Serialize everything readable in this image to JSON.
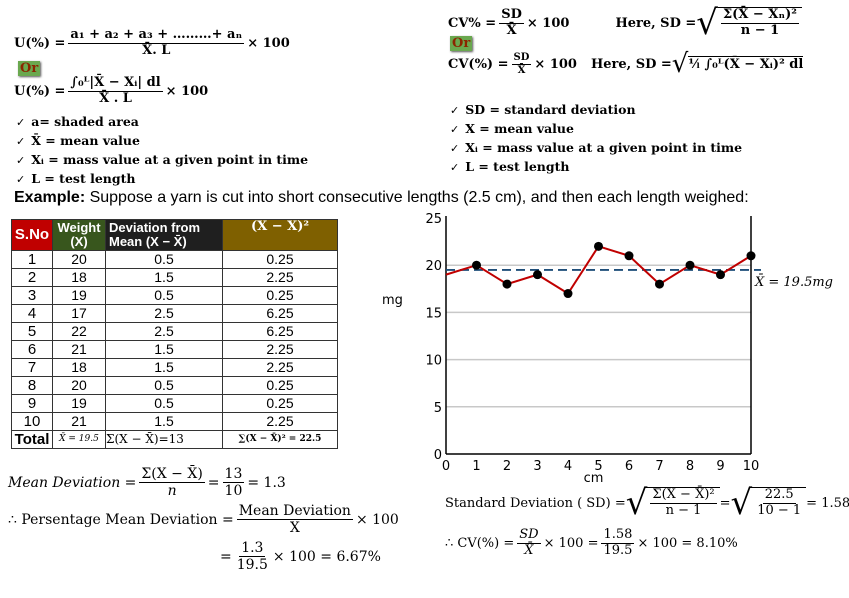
{
  "uniformity": {
    "formula1": {
      "lhs": "U(%) =",
      "num": "a₁ + a₂ + a₃ +   ………+ aₙ",
      "den": "X̄. L",
      "times": "× 100"
    },
    "or_label": "Or",
    "formula2": {
      "lhs": "U(%) =",
      "num": "∫₀ᴸ|X̄ − Xᵢ| dl",
      "den": "X̄ . L",
      "times": "× 100"
    },
    "bullets": [
      "a= shaded area",
      "X̄ = mean value",
      "Xᵢ = mass value at a given point in time",
      "L = test length"
    ]
  },
  "cv": {
    "formula1": {
      "lhs": "CV% =",
      "num": "SD",
      "den": "X̄",
      "times": "× 100",
      "here": "Here, SD =",
      "sd_num": "Σ(X̄ − Xₙ)²",
      "sd_den": "n − 1"
    },
    "or_label": "Or",
    "formula2": {
      "lhs": "CV(%) =",
      "num": "SD",
      "den": "X̄",
      "times": "× 100",
      "here": "Here, SD =",
      "sd_body": "¹⁄ₗ ∫₀ᴸ(X̄ − Xᵢ)² dl"
    },
    "bullets": [
      "SD = standard deviation",
      "X = mean value",
      "Xᵢ = mass value at a given point in time",
      "L = test length"
    ]
  },
  "example": {
    "label": "Example:",
    "text": " Suppose a yarn is cut into short consecutive lengths (2.5 cm), and then each length weighed:"
  },
  "table": {
    "headers": [
      "S.No",
      "Weight (X)",
      "Deviation from Mean (X − X̄)",
      "(X − X̄)²"
    ],
    "header_colors": [
      "#c00000",
      "#38561d",
      "#1f1f1f",
      "#7f6000"
    ],
    "rows": [
      [
        "1",
        "20",
        "0.5",
        "0.25"
      ],
      [
        "2",
        "18",
        "1.5",
        "2.25"
      ],
      [
        "3",
        "19",
        "0.5",
        "0.25"
      ],
      [
        "4",
        "17",
        "2.5",
        "6.25"
      ],
      [
        "5",
        "22",
        "2.5",
        "6.25"
      ],
      [
        "6",
        "21",
        "1.5",
        "2.25"
      ],
      [
        "7",
        "18",
        "1.5",
        "2.25"
      ],
      [
        "8",
        "20",
        "0.5",
        "0.25"
      ],
      [
        "9",
        "19",
        "0.5",
        "0.25"
      ],
      [
        "10",
        "21",
        "1.5",
        "2.25"
      ]
    ],
    "total": [
      "Total",
      "X̄ = 19.5",
      "Σ(X − X̄)=13",
      "∑(X − X̄)² = 22.5"
    ]
  },
  "chart_data": {
    "type": "line",
    "x": [
      0,
      1,
      2,
      3,
      4,
      5,
      6,
      7,
      8,
      9,
      10
    ],
    "values": [
      19,
      20,
      18,
      19,
      17,
      22,
      21,
      18,
      20,
      19,
      21
    ],
    "markers_from_index": 1,
    "xlabel": "cm",
    "ylabel": "mg",
    "xlim": [
      0,
      10
    ],
    "ylim": [
      0,
      25
    ],
    "xticks": [
      "0",
      "1",
      "2",
      "3",
      "4",
      "5",
      "6",
      "7",
      "8",
      "9",
      "10"
    ],
    "yticks": [
      "0",
      "5",
      "10",
      "15",
      "20",
      "25"
    ],
    "grid": "horizontal",
    "mean": 19.5,
    "mean_label": "X̄ = 19.5mg",
    "line_color": "#c00000",
    "mean_color": "#1f4e79"
  },
  "mean_deviation": {
    "lhs": "Mean Deviation =",
    "num": "Σ(X − X̄)",
    "den": "n",
    "eq1": "=",
    "num2": "13",
    "den2": "10",
    "result": "= 1.3",
    "pct_lhs": "∴ Persentage Mean Deviation =",
    "pct_num": "Mean Deviation",
    "pct_den": "X̄",
    "pct_times": "× 100",
    "eq2": "=",
    "num3": "1.3",
    "den3": "19.5",
    "result2": "× 100 = 6.67%"
  },
  "standard_deviation": {
    "lhs": "Standard Deviation ( SD) =",
    "num": "Σ(X − X̄)²",
    "den": "n − 1",
    "eq": "=",
    "num2": "22.5",
    "den2": "10 − 1",
    "result": "= 1.58",
    "cv_lhs": "∴ CV(%) =",
    "cv_num": "SD",
    "cv_den": "X̄",
    "cv_mid": "× 100 =",
    "cv_num2": "1.58",
    "cv_den2": "19.5",
    "cv_result": "× 100 = 8.10%"
  }
}
